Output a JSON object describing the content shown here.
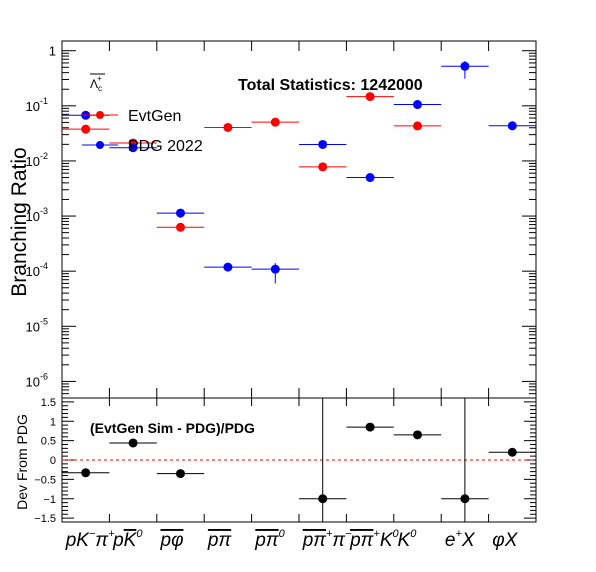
{
  "chart_data": [
    {
      "type": "scatter",
      "ylabel": "Branching Ratio",
      "yscale": "log",
      "ylim": [
        5e-07,
        1.5
      ],
      "ytick_labels": [
        {
          "v": 1,
          "text": "1"
        },
        {
          "v": 0.1,
          "base": "10",
          "exp": "-1"
        },
        {
          "v": 0.01,
          "base": "10",
          "exp": "-2"
        },
        {
          "v": 0.001,
          "base": "10",
          "exp": "-3"
        },
        {
          "v": 0.0001,
          "base": "10",
          "exp": "-4"
        },
        {
          "v": 1e-05,
          "base": "10",
          "exp": "-5"
        },
        {
          "v": 1e-06,
          "base": "10",
          "exp": "-6"
        }
      ],
      "stat_label": "Total Statistics: 1242000",
      "particle_label": {
        "base": "Λ",
        "sub": "c",
        "sup": "+"
      },
      "legend": {
        "placement": "top-left",
        "entries": [
          {
            "label": "EvtGen",
            "color": "#ff0000"
          },
          {
            "label": "PDG 2022",
            "color": "#0000ff"
          }
        ]
      },
      "series": [
        {
          "color": "#ff0000",
          "points": [
            {
              "x": 0,
              "y": 0.041
            },
            {
              "x": 1,
              "y": 0.023
            },
            {
              "x": 2,
              "y": 0.00068
            },
            {
              "x": 3,
              "y": 0.044
            },
            {
              "x": 4,
              "y": 0.055
            },
            {
              "x": 5,
              "y": 0.0085
            },
            {
              "x": 6,
              "y": 0.16
            },
            {
              "x": 7,
              "y": 0.047
            }
          ]
        },
        {
          "color": "#0000ff",
          "points": [
            {
              "x": 0,
              "y": 0.062,
              "err": 0.003
            },
            {
              "x": 1,
              "y": 0.016,
              "err": 0.0008
            },
            {
              "x": 2,
              "y": 0.00104,
              "err": 0.00012
            },
            {
              "x": 3,
              "y": 0.000109,
              "err": 1e-05
            },
            {
              "x": 4,
              "y": 0.0001,
              "err": 4e-05
            },
            {
              "x": 5,
              "y": 0.0183,
              "err": 0.0012
            },
            {
              "x": 6,
              "y": 0.0046,
              "err": 0.0003
            },
            {
              "x": 7,
              "y": 0.097,
              "err": 0.005
            },
            {
              "x": 8,
              "y": 0.48,
              "err": 0.17
            },
            {
              "x": 9,
              "y": 0.04,
              "err": 0.004
            }
          ]
        }
      ]
    },
    {
      "type": "scatter",
      "ylabel": "Dev From PDG",
      "ylim": [
        -1.6,
        1.6
      ],
      "yticks": [
        1.5,
        1,
        0.5,
        0,
        -0.5,
        -1,
        -1.5
      ],
      "ytick_labels": [
        "1.5",
        "1",
        "0.5",
        "0",
        "−0.5",
        "−1",
        "−1.5"
      ],
      "annotation": "(EvtGen Sim - PDG)/PDG",
      "reference_line": {
        "y": 0,
        "color": "#ff0000",
        "style": "dashed"
      },
      "points": [
        {
          "x": 0,
          "y": -0.33
        },
        {
          "x": 1,
          "y": 0.44
        },
        {
          "x": 2,
          "y": -0.35
        },
        {
          "x": 5,
          "y": -1.0,
          "big_error": true
        },
        {
          "x": 6,
          "y": 0.85
        },
        {
          "x": 7,
          "y": 0.65
        },
        {
          "x": 8,
          "y": -1.0,
          "big_error": true
        },
        {
          "x": 9,
          "y": 0.2
        }
      ]
    }
  ],
  "categories": [
    {
      "id": "c0",
      "parts": [
        {
          "t": "pK"
        },
        {
          "t": "−",
          "sup": true
        },
        {
          "t": "π"
        },
        {
          "t": "+",
          "sup": true
        }
      ]
    },
    {
      "id": "c1",
      "parts": [
        {
          "t": "p"
        },
        {
          "t": "K",
          "over": true
        },
        {
          "t": "0",
          "sup": true
        }
      ]
    },
    {
      "id": "c2",
      "parts": [
        {
          "t": "pφ",
          "over": true
        }
      ]
    },
    {
      "id": "c3",
      "parts": [
        {
          "t": "pπ",
          "over": true
        }
      ]
    },
    {
      "id": "c4",
      "parts": [
        {
          "t": "pπ",
          "over": true
        },
        {
          "t": "0",
          "sup": true
        }
      ]
    },
    {
      "id": "c5",
      "parts": [
        {
          "t": "pπ",
          "over": true
        },
        {
          "t": "+",
          "sup": true
        },
        {
          "t": "π"
        },
        {
          "t": "−",
          "sup": true
        }
      ]
    },
    {
      "id": "c6",
      "parts": [
        {
          "t": "pπ",
          "over": true
        },
        {
          "t": "+",
          "sup": true
        },
        {
          "t": "K"
        },
        {
          "t": "0",
          "sup": true
        }
      ]
    },
    {
      "id": "c7",
      "parts": [
        {
          "t": "K"
        },
        {
          "t": "0",
          "sup": true
        }
      ]
    },
    {
      "id": "c8",
      "parts": [
        {
          "t": "e"
        },
        {
          "t": "+",
          "sup": true
        },
        {
          "t": "X"
        }
      ]
    },
    {
      "id": "c9",
      "parts": [
        {
          "t": "φX"
        }
      ]
    }
  ]
}
